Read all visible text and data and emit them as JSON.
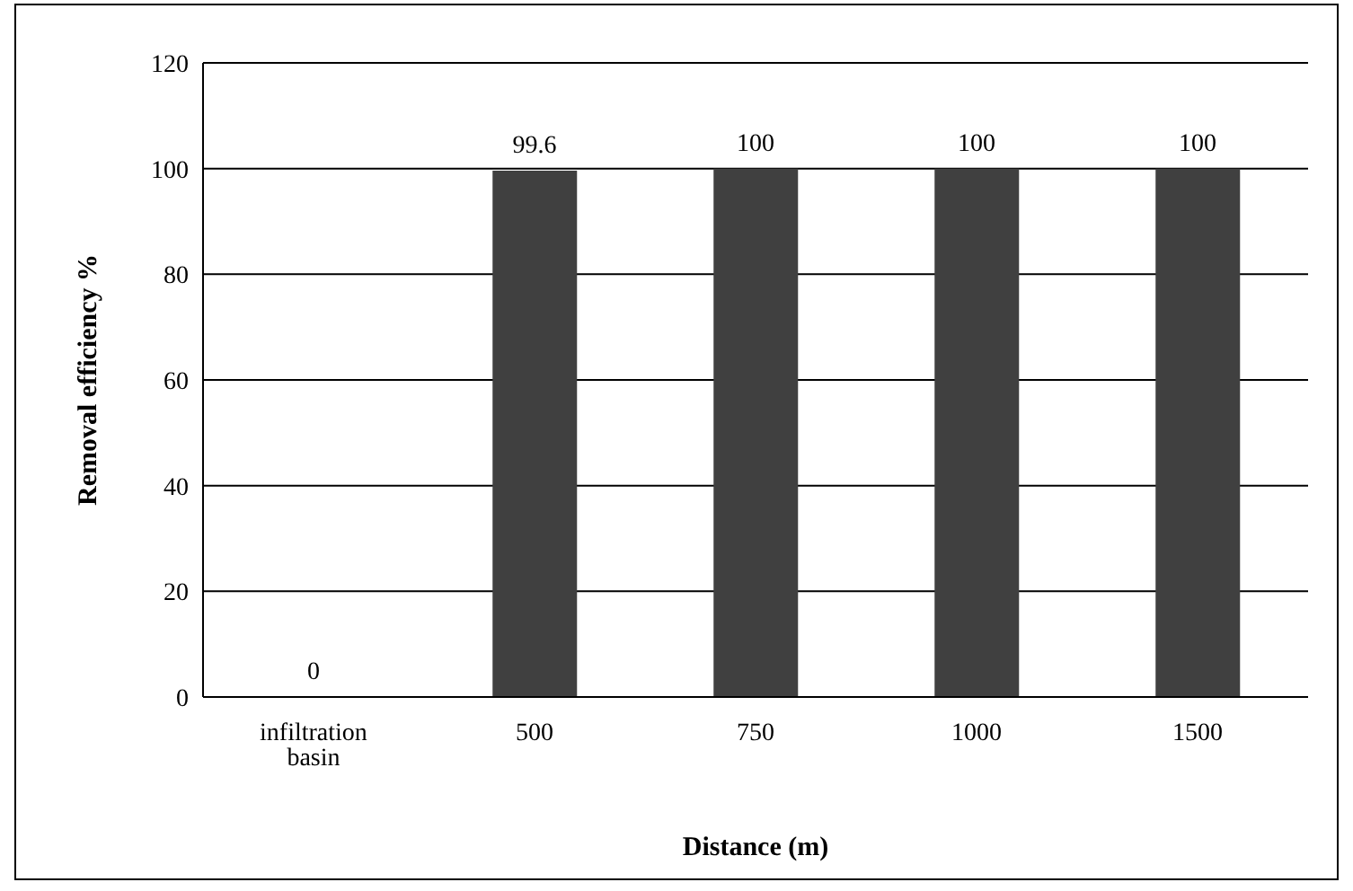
{
  "chart_data": {
    "type": "bar",
    "xlabel": "Distance (m)",
    "ylabel": "Removal efficiency %",
    "categories": [
      "infiltration basin",
      "500",
      "750",
      "1000",
      "1500"
    ],
    "values": [
      0,
      99.6,
      100,
      100,
      100
    ],
    "color": "#404040",
    "ylim": [
      0,
      120
    ],
    "yticks": [
      0,
      20,
      40,
      60,
      80,
      100,
      120
    ],
    "grid": "y",
    "data_labels": true
  }
}
